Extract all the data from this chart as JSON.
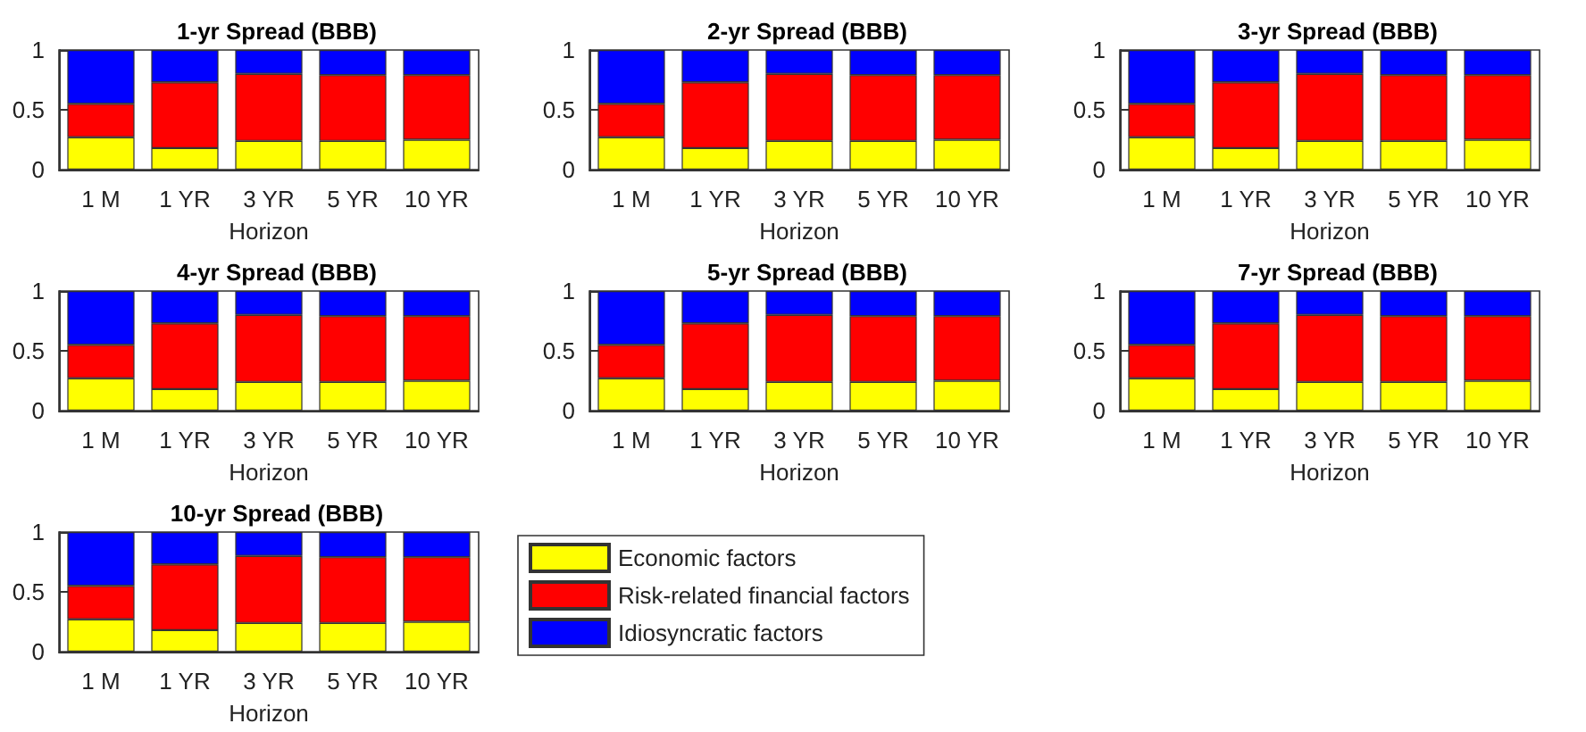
{
  "chart_data": [
    {
      "type": "bar",
      "stacked": true,
      "title": "1-yr Spread (BBB)",
      "xlabel": "Horizon",
      "categories": [
        "1 M",
        "1 YR",
        "3 YR",
        "5 YR",
        "10 YR"
      ],
      "ylim": [
        0,
        1
      ],
      "yticks": [
        0,
        0.5,
        1
      ],
      "series": [
        {
          "color": "#ffff00",
          "values": [
            0.27,
            0.18,
            0.24,
            0.24,
            0.25
          ]
        },
        {
          "color": "#ff0000",
          "values": [
            0.28,
            0.55,
            0.56,
            0.55,
            0.54
          ]
        },
        {
          "color": "#0000ff",
          "values": [
            0.45,
            0.27,
            0.2,
            0.21,
            0.21
          ]
        }
      ]
    },
    {
      "type": "bar",
      "stacked": true,
      "title": "2-yr Spread (BBB)",
      "xlabel": "Horizon",
      "categories": [
        "1 M",
        "1 YR",
        "3 YR",
        "5 YR",
        "10 YR"
      ],
      "ylim": [
        0,
        1
      ],
      "yticks": [
        0,
        0.5,
        1
      ],
      "series": [
        {
          "color": "#ffff00",
          "values": [
            0.27,
            0.18,
            0.24,
            0.24,
            0.25
          ]
        },
        {
          "color": "#ff0000",
          "values": [
            0.28,
            0.55,
            0.56,
            0.55,
            0.54
          ]
        },
        {
          "color": "#0000ff",
          "values": [
            0.45,
            0.27,
            0.2,
            0.21,
            0.21
          ]
        }
      ]
    },
    {
      "type": "bar",
      "stacked": true,
      "title": "3-yr Spread (BBB)",
      "xlabel": "Horizon",
      "categories": [
        "1 M",
        "1 YR",
        "3 YR",
        "5 YR",
        "10 YR"
      ],
      "ylim": [
        0,
        1
      ],
      "yticks": [
        0,
        0.5,
        1
      ],
      "series": [
        {
          "color": "#ffff00",
          "values": [
            0.27,
            0.18,
            0.24,
            0.24,
            0.25
          ]
        },
        {
          "color": "#ff0000",
          "values": [
            0.28,
            0.55,
            0.56,
            0.55,
            0.54
          ]
        },
        {
          "color": "#0000ff",
          "values": [
            0.45,
            0.27,
            0.2,
            0.21,
            0.21
          ]
        }
      ]
    },
    {
      "type": "bar",
      "stacked": true,
      "title": "4-yr Spread (BBB)",
      "xlabel": "Horizon",
      "categories": [
        "1 M",
        "1 YR",
        "3 YR",
        "5 YR",
        "10 YR"
      ],
      "ylim": [
        0,
        1
      ],
      "yticks": [
        0,
        0.5,
        1
      ],
      "series": [
        {
          "color": "#ffff00",
          "values": [
            0.27,
            0.18,
            0.24,
            0.24,
            0.25
          ]
        },
        {
          "color": "#ff0000",
          "values": [
            0.28,
            0.55,
            0.56,
            0.55,
            0.54
          ]
        },
        {
          "color": "#0000ff",
          "values": [
            0.45,
            0.27,
            0.2,
            0.21,
            0.21
          ]
        }
      ]
    },
    {
      "type": "bar",
      "stacked": true,
      "title": "5-yr Spread (BBB)",
      "xlabel": "Horizon",
      "categories": [
        "1 M",
        "1 YR",
        "3 YR",
        "5 YR",
        "10 YR"
      ],
      "ylim": [
        0,
        1
      ],
      "yticks": [
        0,
        0.5,
        1
      ],
      "series": [
        {
          "color": "#ffff00",
          "values": [
            0.27,
            0.18,
            0.24,
            0.24,
            0.25
          ]
        },
        {
          "color": "#ff0000",
          "values": [
            0.28,
            0.55,
            0.56,
            0.55,
            0.54
          ]
        },
        {
          "color": "#0000ff",
          "values": [
            0.45,
            0.27,
            0.2,
            0.21,
            0.21
          ]
        }
      ]
    },
    {
      "type": "bar",
      "stacked": true,
      "title": "7-yr Spread (BBB)",
      "xlabel": "Horizon",
      "categories": [
        "1 M",
        "1 YR",
        "3 YR",
        "5 YR",
        "10 YR"
      ],
      "ylim": [
        0,
        1
      ],
      "yticks": [
        0,
        0.5,
        1
      ],
      "series": [
        {
          "color": "#ffff00",
          "values": [
            0.27,
            0.18,
            0.24,
            0.24,
            0.25
          ]
        },
        {
          "color": "#ff0000",
          "values": [
            0.28,
            0.55,
            0.56,
            0.55,
            0.54
          ]
        },
        {
          "color": "#0000ff",
          "values": [
            0.45,
            0.27,
            0.2,
            0.21,
            0.21
          ]
        }
      ]
    },
    {
      "type": "bar",
      "stacked": true,
      "title": "10-yr Spread (BBB)",
      "xlabel": "Horizon",
      "categories": [
        "1 M",
        "1 YR",
        "3 YR",
        "5 YR",
        "10 YR"
      ],
      "ylim": [
        0,
        1
      ],
      "yticks": [
        0,
        0.5,
        1
      ],
      "legend": "right",
      "series": [
        {
          "name": "Economic factors",
          "color": "#ffff00",
          "values": [
            0.27,
            0.18,
            0.24,
            0.24,
            0.25
          ]
        },
        {
          "name": "Risk-related financial factors",
          "color": "#ff0000",
          "values": [
            0.28,
            0.55,
            0.56,
            0.55,
            0.54
          ]
        },
        {
          "name": "Idiosyncratic factors",
          "color": "#0000ff",
          "values": [
            0.45,
            0.27,
            0.2,
            0.21,
            0.21
          ]
        }
      ]
    }
  ]
}
